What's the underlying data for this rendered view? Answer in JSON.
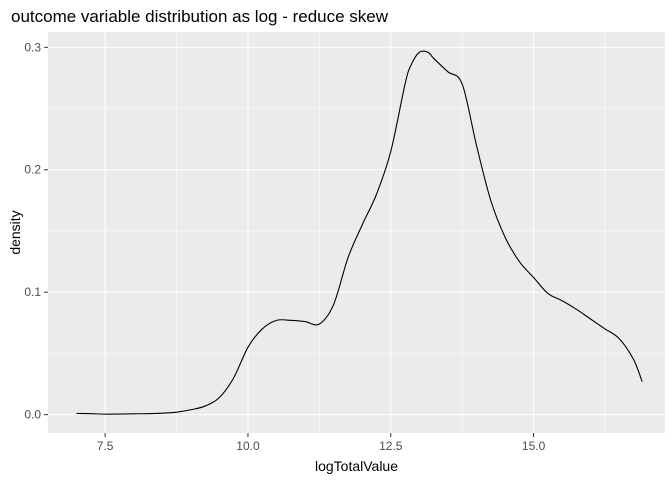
{
  "chart_data": {
    "type": "line",
    "title": "outcome variable distribution as log - reduce skew",
    "xlabel": "logTotalValue",
    "ylabel": "density",
    "xlim": [
      6.5,
      17.3
    ],
    "ylim": [
      -0.015,
      0.3125
    ],
    "x_ticks": [
      7.5,
      10.0,
      12.5,
      15.0
    ],
    "x_tick_labels": [
      "7.5",
      "10.0",
      "12.5",
      "15.0"
    ],
    "x_minor_ticks": [
      8.75,
      11.25,
      13.75,
      16.25
    ],
    "y_ticks": [
      0.0,
      0.1,
      0.2,
      0.3
    ],
    "y_tick_labels": [
      "0.0",
      "0.1",
      "0.2",
      "0.3"
    ],
    "y_minor_ticks": [
      0.05,
      0.15,
      0.25
    ],
    "grid": true,
    "series": [
      {
        "color": "#000000",
        "x": [
          7.0,
          7.25,
          7.5,
          7.75,
          8.0,
          8.25,
          8.5,
          8.75,
          9.0,
          9.25,
          9.5,
          9.75,
          10.0,
          10.25,
          10.5,
          10.75,
          11.0,
          11.25,
          11.5,
          11.75,
          12.0,
          12.25,
          12.5,
          12.75,
          12.85,
          13.0,
          13.15,
          13.25,
          13.5,
          13.75,
          14.0,
          14.25,
          14.5,
          14.75,
          15.0,
          15.25,
          15.5,
          15.75,
          16.0,
          16.25,
          16.5,
          16.75,
          16.9
        ],
        "y": [
          0.001,
          0.0008,
          0.0004,
          0.0005,
          0.0007,
          0.0008,
          0.0012,
          0.002,
          0.004,
          0.007,
          0.014,
          0.03,
          0.055,
          0.07,
          0.077,
          0.077,
          0.076,
          0.074,
          0.09,
          0.128,
          0.155,
          0.18,
          0.215,
          0.27,
          0.285,
          0.296,
          0.296,
          0.291,
          0.28,
          0.27,
          0.22,
          0.175,
          0.145,
          0.125,
          0.112,
          0.099,
          0.093,
          0.086,
          0.078,
          0.07,
          0.062,
          0.045,
          0.027
        ]
      }
    ]
  }
}
